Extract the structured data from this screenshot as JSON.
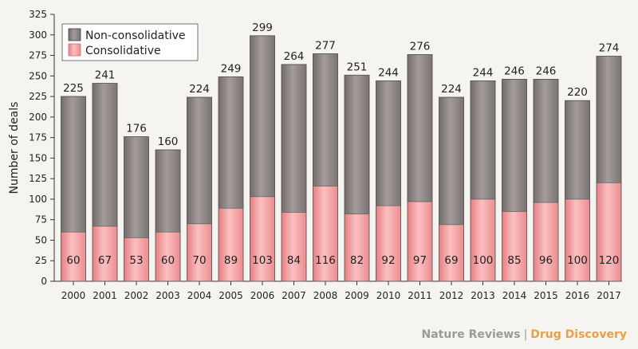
{
  "chart_data": {
    "type": "bar",
    "stacked": true,
    "categories": [
      "2000",
      "2001",
      "2002",
      "2003",
      "2004",
      "2005",
      "2006",
      "2007",
      "2008",
      "2009",
      "2010",
      "2011",
      "2012",
      "2013",
      "2014",
      "2015",
      "2016",
      "2017"
    ],
    "series": [
      {
        "name": "Consolidative",
        "color": "#f29a9c",
        "values": [
          60,
          67,
          53,
          60,
          70,
          89,
          103,
          84,
          116,
          82,
          92,
          97,
          69,
          100,
          85,
          96,
          100,
          120
        ]
      },
      {
        "name": "Non-consolidative",
        "color": "#8a8381",
        "values": [
          165,
          174,
          123,
          100,
          154,
          160,
          196,
          180,
          161,
          169,
          152,
          179,
          155,
          144,
          161,
          150,
          120,
          154
        ]
      }
    ],
    "totals": [
      225,
      241,
      176,
      160,
      224,
      249,
      299,
      264,
      277,
      251,
      244,
      276,
      224,
      244,
      246,
      246,
      220,
      274
    ],
    "ylabel": "Number of deals",
    "xlabel": "",
    "ylim": [
      0,
      325
    ],
    "yticks": [
      0,
      25,
      50,
      75,
      100,
      125,
      150,
      175,
      200,
      225,
      250,
      275,
      300,
      325
    ],
    "legend": {
      "placement": "top-left",
      "entries": [
        "Non-consolidative",
        "Consolidative"
      ]
    }
  },
  "credit": {
    "publisher": "Nature Reviews",
    "separator": "|",
    "journal": "Drug Discovery"
  }
}
